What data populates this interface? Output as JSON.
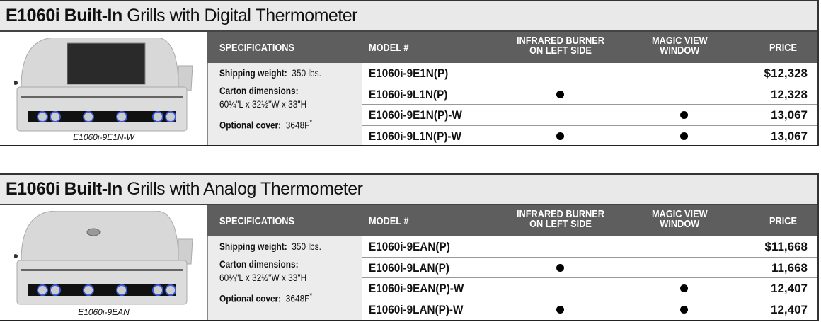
{
  "columns": {
    "specifications": "SPECIFICATIONS",
    "model": "MODEL #",
    "infrared_1": "INFRARED BURNER",
    "infrared_2": "ON LEFT SIDE",
    "magic_1": "MAGIC VIEW",
    "magic_2": "WINDOW",
    "price": "PRICE"
  },
  "sections": [
    {
      "title_bold": "E1060i Built-In",
      "title_rest": " Grills with Digital Thermometer",
      "image_caption": "E1060i-9E1N-W",
      "grill_variant": "magic-view-window",
      "specs": {
        "weight_label": "Shipping weight:",
        "weight_value": "350 lbs.",
        "carton_label": "Carton dimensions:",
        "carton_value": "60¼\"L x 32½\"W x 33\"H",
        "cover_label": "Optional cover:",
        "cover_value": "3648F",
        "cover_mark": "*"
      },
      "rows": [
        {
          "model": "E1060i-9E1N(P)",
          "infrared": false,
          "magic_view": false,
          "price": "$12,328"
        },
        {
          "model": "E1060i-9L1N(P)",
          "infrared": true,
          "magic_view": false,
          "price": "12,328"
        },
        {
          "model": "E1060i-9E1N(P)-W",
          "infrared": false,
          "magic_view": true,
          "price": "13,067"
        },
        {
          "model": "E1060i-9L1N(P)-W",
          "infrared": true,
          "magic_view": true,
          "price": "13,067"
        }
      ]
    },
    {
      "title_bold": "E1060i Built-In",
      "title_rest": " Grills with Analog Thermometer",
      "image_caption": "E1060i-9EAN",
      "grill_variant": "analog-thermometer",
      "specs": {
        "weight_label": "Shipping weight:",
        "weight_value": "350 lbs.",
        "carton_label": "Carton dimensions:",
        "carton_value": "60¼\"L x 32½\"W x 33\"H",
        "cover_label": "Optional cover:",
        "cover_value": "3648F",
        "cover_mark": "*"
      },
      "rows": [
        {
          "model": "E1060i-9EAN(P)",
          "infrared": false,
          "magic_view": false,
          "price": "$11,668"
        },
        {
          "model": "E1060i-9LAN(P)",
          "infrared": true,
          "magic_view": false,
          "price": "11,668"
        },
        {
          "model": "E1060i-9EAN(P)-W",
          "infrared": false,
          "magic_view": true,
          "price": "12,407"
        },
        {
          "model": "E1060i-9LAN(P)-W",
          "infrared": true,
          "magic_view": true,
          "price": "12,407"
        }
      ]
    }
  ]
}
